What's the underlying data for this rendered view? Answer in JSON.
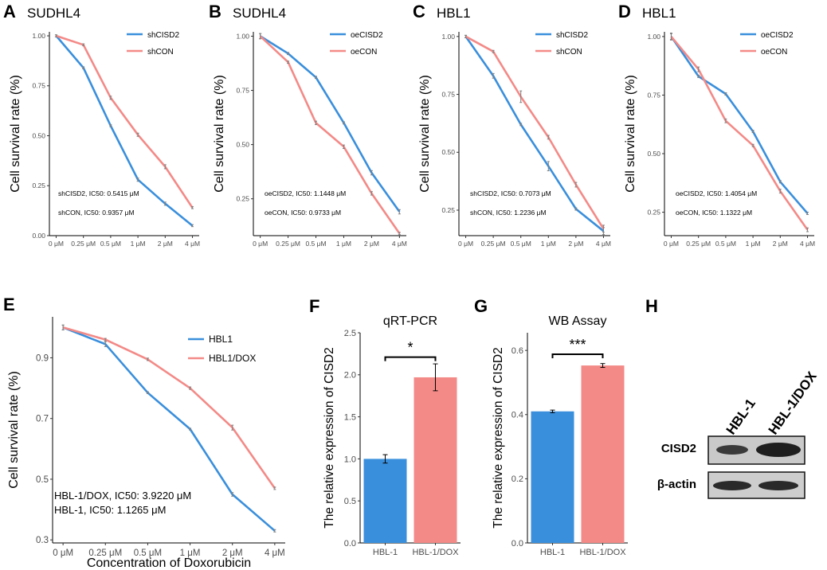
{
  "colors": {
    "blue": "#3a8fdc",
    "red": "#f38a87",
    "error": "#7f7f7f",
    "axis": "#000000",
    "tick_text": "#4d4d4d"
  },
  "panels": {
    "A": {
      "letter": "A",
      "title": "SUDHL4"
    },
    "B": {
      "letter": "B",
      "title": "SUDHL4"
    },
    "C": {
      "letter": "C",
      "title": "HBL1"
    },
    "D": {
      "letter": "D",
      "title": "HBL1"
    },
    "E": {
      "letter": "E",
      "title": ""
    },
    "F": {
      "letter": "F",
      "title": "qRT-PCR"
    },
    "G": {
      "letter": "G",
      "title": "WB Assay"
    },
    "H": {
      "letter": "H",
      "title": ""
    }
  },
  "chart_data": [
    {
      "id": "A",
      "type": "line",
      "ylabel": "Cell survival rate (%)",
      "xlabel": "",
      "categories": [
        "0 μM",
        "0.25 μM",
        "0.5 μM",
        "1 μM",
        "2 μM",
        "4 μM"
      ],
      "ylim": [
        0.0,
        1.02
      ],
      "yticks": [
        0.0,
        0.25,
        0.5,
        0.75,
        1.0
      ],
      "ytick_labels": [
        "0.00",
        "0.25",
        "0.50",
        "0.75",
        "1.00"
      ],
      "series": [
        {
          "name": "shCISD2",
          "color": "#3a8fdc",
          "values": [
            1.0,
            0.84,
            0.55,
            0.28,
            0.16,
            0.05
          ],
          "errors": [
            0.005,
            0.005,
            0.005,
            0.008,
            0.008,
            0.005
          ]
        },
        {
          "name": "shCON",
          "color": "#f38a87",
          "values": [
            1.0,
            0.955,
            0.69,
            0.505,
            0.345,
            0.14
          ],
          "errors": [
            0.005,
            0.005,
            0.008,
            0.008,
            0.01,
            0.005
          ]
        }
      ],
      "annotations": [
        "shCISD2, IC50: 0.5415 μM",
        "shCON, IC50: 0.9357 μM"
      ]
    },
    {
      "id": "B",
      "type": "line",
      "ylabel": "Cell survival rate (%)",
      "xlabel": "",
      "categories": [
        "0 μM",
        "0.25 μM",
        "0.5 μM",
        "1 μM",
        "2 μM",
        "4 μM"
      ],
      "ylim": [
        0.08,
        1.02
      ],
      "yticks": [
        0.25,
        0.5,
        0.75,
        1.0
      ],
      "ytick_labels": [
        "0.25",
        "0.50",
        "0.75",
        "1.00"
      ],
      "series": [
        {
          "name": "oeCISD2",
          "color": "#3a8fdc",
          "values": [
            1.0,
            0.92,
            0.81,
            0.6,
            0.37,
            0.19
          ],
          "errors": [
            0.012,
            0.005,
            0.005,
            0.005,
            0.01,
            0.01
          ]
        },
        {
          "name": "oeCON",
          "color": "#f38a87",
          "values": [
            1.0,
            0.88,
            0.6,
            0.49,
            0.275,
            0.09
          ],
          "errors": [
            0.012,
            0.005,
            0.008,
            0.008,
            0.008,
            0.005
          ]
        }
      ],
      "annotations": [
        "oeCISD2, IC50: 1.1448 μM",
        "oeCON, IC50: 0.9733 μM"
      ]
    },
    {
      "id": "C",
      "type": "line",
      "ylabel": "Cell survival rate (%)",
      "xlabel": "",
      "categories": [
        "0 μM",
        "0.25 μM",
        "0.5 μM",
        "1 μM",
        "2 μM",
        "4 μM"
      ],
      "ylim": [
        0.14,
        1.02
      ],
      "yticks": [
        0.25,
        0.5,
        0.75,
        1.0
      ],
      "ytick_labels": [
        "0.25",
        "0.50",
        "0.75",
        "1.00"
      ],
      "series": [
        {
          "name": "shCISD2",
          "color": "#3a8fdc",
          "values": [
            1.0,
            0.83,
            0.62,
            0.44,
            0.255,
            0.16
          ],
          "errors": [
            0.005,
            0.01,
            0.005,
            0.02,
            0.005,
            0.015
          ]
        },
        {
          "name": "shCON",
          "color": "#f38a87",
          "values": [
            1.0,
            0.935,
            0.74,
            0.565,
            0.36,
            0.17
          ],
          "errors": [
            0.005,
            0.005,
            0.025,
            0.008,
            0.01,
            0.015
          ]
        }
      ],
      "annotations": [
        "shCISD2, IC50: 0.7073 μM",
        "shCON, IC50: 1.2236 μM"
      ]
    },
    {
      "id": "D",
      "type": "line",
      "ylabel": "Cell survival rate (%)",
      "xlabel": "",
      "categories": [
        "0 μM",
        "0.25 μM",
        "0.5 μM",
        "1 μM",
        "2 μM",
        "4 μM"
      ],
      "ylim": [
        0.15,
        1.02
      ],
      "yticks": [
        0.25,
        0.5,
        0.75,
        1.0
      ],
      "ytick_labels": [
        "0.25",
        "0.50",
        "0.75",
        "1.00"
      ],
      "series": [
        {
          "name": "oeCISD2",
          "color": "#3a8fdc",
          "values": [
            1.0,
            0.83,
            0.755,
            0.595,
            0.38,
            0.245
          ],
          "errors": [
            0.015,
            0.005,
            0.005,
            0.005,
            0.005,
            0.005
          ]
        },
        {
          "name": "oeCON",
          "color": "#f38a87",
          "values": [
            1.0,
            0.86,
            0.64,
            0.535,
            0.34,
            0.175
          ],
          "errors": [
            0.012,
            0.01,
            0.008,
            0.005,
            0.008,
            0.008
          ]
        }
      ],
      "annotations": [
        "oeCISD2, IC50: 1.4054 μM",
        "oeCON, IC50:  1.1322 μM"
      ]
    },
    {
      "id": "E",
      "type": "line",
      "ylabel": "Cell survival rate (%)",
      "xlabel": "Concentration of Doxorubicin",
      "categories": [
        "0 μM",
        "0.25 μM",
        "0.5 μM",
        "1 μM",
        "2 μM",
        "4 μM"
      ],
      "ylim": [
        0.29,
        1.035
      ],
      "yticks": [
        0.3,
        0.5,
        0.7,
        0.9
      ],
      "ytick_labels": [
        "0.3",
        "0.5",
        "0.7",
        "0.9"
      ],
      "series": [
        {
          "name": "HBL1",
          "color": "#3a8fdc",
          "values": [
            1.0,
            0.945,
            0.785,
            0.665,
            0.45,
            0.33
          ],
          "errors": [
            0.008,
            0.008,
            0.003,
            0.003,
            0.006,
            0.004
          ]
        },
        {
          "name": "HBL1/DOX",
          "color": "#f38a87",
          "values": [
            1.0,
            0.96,
            0.895,
            0.8,
            0.67,
            0.47
          ],
          "errors": [
            0.008,
            0.004,
            0.004,
            0.004,
            0.008,
            0.004
          ]
        }
      ],
      "annotations": [
        "HBL-1/DOX, IC50: 3.9220 μM",
        "HBL-1, IC50:  1.1265 μM"
      ]
    },
    {
      "id": "F",
      "type": "bar",
      "ylabel": "The relative expression of CISD2",
      "xlabel": "",
      "title": "qRT-PCR",
      "categories": [
        "HBL-1",
        "HBL-1/DOX"
      ],
      "values": [
        1.0,
        1.97
      ],
      "errors": [
        0.05,
        0.16
      ],
      "colors": [
        "#3a8fdc",
        "#f38a87"
      ],
      "ylim": [
        0.0,
        2.5
      ],
      "yticks": [
        0.0,
        0.5,
        1.0,
        1.5,
        2.0,
        2.5
      ],
      "ytick_labels": [
        "0.0",
        "0.5",
        "1.0",
        "1.5",
        "2.0",
        "2.5"
      ],
      "significance": "*",
      "bracket_y": 2.21
    },
    {
      "id": "G",
      "type": "bar",
      "ylabel": "The relative expression of CISD2",
      "xlabel": "",
      "title": "WB Assay",
      "categories": [
        "HBL-1",
        "HBL-1/DOX"
      ],
      "values": [
        0.41,
        0.553
      ],
      "errors": [
        0.004,
        0.006
      ],
      "colors": [
        "#3a8fdc",
        "#f38a87"
      ],
      "ylim": [
        0.0,
        0.655
      ],
      "yticks": [
        0.0,
        0.2,
        0.4,
        0.6
      ],
      "ytick_labels": [
        "0.0",
        "0.2",
        "0.4",
        "0.6"
      ],
      "significance": "***",
      "bracket_y": 0.588
    }
  ],
  "blot": {
    "lanes": [
      "HBL-1",
      "HBL-1/DOX"
    ],
    "rows": [
      "CISD2",
      "β-actin"
    ]
  }
}
